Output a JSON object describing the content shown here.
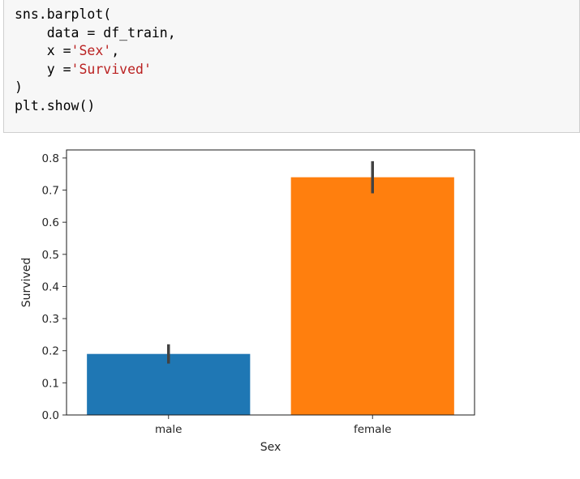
{
  "code_cell": {
    "lines": [
      [
        {
          "t": "sns.barplot("
        }
      ],
      [
        {
          "t": "    data = df_train,"
        }
      ],
      [
        {
          "t": "    x ="
        },
        {
          "t": "'Sex'",
          "s": true
        },
        {
          "t": ","
        }
      ],
      [
        {
          "t": "    y ="
        },
        {
          "t": "'Survived'",
          "s": true
        }
      ],
      [
        {
          "t": ")"
        }
      ],
      [
        {
          "t": "plt.show()"
        }
      ]
    ]
  },
  "chart_data": {
    "type": "bar",
    "categories": [
      "male",
      "female"
    ],
    "values": [
      0.19,
      0.74
    ],
    "error_bars": [
      [
        0.16,
        0.22
      ],
      [
        0.69,
        0.79
      ]
    ],
    "colors": [
      "#1f77b4",
      "#ff7f0e"
    ],
    "xlabel": "Sex",
    "ylabel": "Survived",
    "ylim": [
      0,
      0.825
    ],
    "yticks": [
      0.0,
      0.1,
      0.2,
      0.3,
      0.4,
      0.5,
      0.6,
      0.7,
      0.8
    ],
    "ytick_labels": [
      "0.0",
      "0.1",
      "0.2",
      "0.3",
      "0.4",
      "0.5",
      "0.6",
      "0.7",
      "0.8"
    ],
    "grid": false,
    "legend": "none"
  }
}
